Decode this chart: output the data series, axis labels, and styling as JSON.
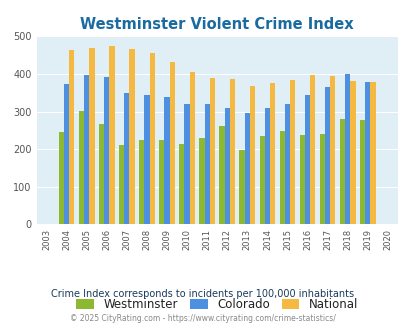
{
  "title": "Westminster Violent Crime Index",
  "years": [
    2003,
    2004,
    2005,
    2006,
    2007,
    2008,
    2009,
    2010,
    2011,
    2012,
    2013,
    2014,
    2015,
    2016,
    2017,
    2018,
    2019,
    2020
  ],
  "westminster": [
    0,
    245,
    301,
    267,
    210,
    225,
    225,
    215,
    230,
    261,
    197,
    235,
    248,
    238,
    241,
    280,
    278,
    0
  ],
  "colorado": [
    0,
    372,
    397,
    393,
    348,
    344,
    338,
    320,
    320,
    309,
    295,
    309,
    321,
    344,
    365,
    399,
    379,
    0
  ],
  "national": [
    0,
    463,
    470,
    474,
    466,
    455,
    432,
    405,
    388,
    387,
    367,
    376,
    383,
    397,
    394,
    381,
    379,
    0
  ],
  "westminster_color": "#8db832",
  "colorado_color": "#4d8fe0",
  "national_color": "#f5b942",
  "plot_bg_color": "#e0eef5",
  "title_color": "#1a6ba0",
  "subtitle": "Crime Index corresponds to incidents per 100,000 inhabitants",
  "footer": "© 2025 CityRating.com - https://www.cityrating.com/crime-statistics/",
  "ylim": [
    0,
    500
  ],
  "yticks": [
    0,
    100,
    200,
    300,
    400,
    500
  ],
  "bar_width": 0.26,
  "legend_labels": [
    "Westminster",
    "Colorado",
    "National"
  ]
}
